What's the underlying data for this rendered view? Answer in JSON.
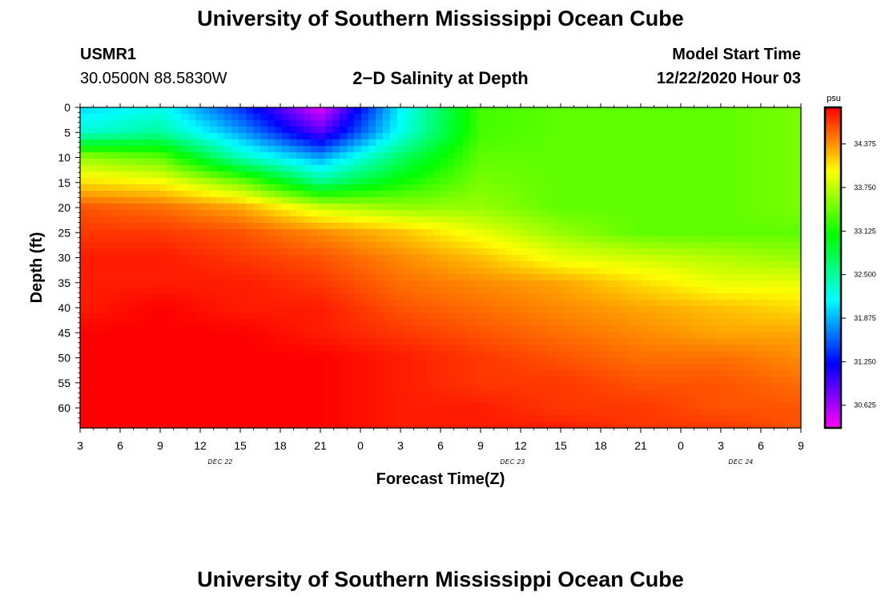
{
  "header": {
    "title": "University of Southern Mississippi Ocean Cube",
    "station_id": "USMR1",
    "coords": "30.0500N 88.5830W",
    "subtitle": "2−D Salinity at Depth",
    "start_label": "Model Start Time",
    "start_value": "12/22/2020 Hour 03",
    "footer_title": "University of Southern Mississippi Ocean Cube"
  },
  "chart_data": {
    "type": "heatmap",
    "title": "2−D Salinity at Depth",
    "xlabel": "Forecast Time(Z)",
    "ylabel": "Depth (ft)",
    "ylim": [
      0,
      64
    ],
    "y_ticks": [
      "0",
      "5",
      "10",
      "15",
      "20",
      "25",
      "30",
      "35",
      "40",
      "45",
      "50",
      "55",
      "60"
    ],
    "x_ticks": [
      "3",
      "6",
      "9",
      "12",
      "15",
      "18",
      "21",
      "0",
      "3",
      "6",
      "9",
      "12",
      "15",
      "18",
      "21",
      "0",
      "3",
      "6",
      "9"
    ],
    "date_labels": [
      {
        "text": "DEC 22",
        "under_tick": 3.5
      },
      {
        "text": "DEC 23",
        "under_tick": 10.8
      },
      {
        "text": "DEC 24",
        "under_tick": 16.5
      }
    ],
    "colorbar": {
      "unit": "psu",
      "range": [
        30.3,
        34.9
      ],
      "ticks": [
        "34.375",
        "33.750",
        "33.125",
        "32.500",
        "31.875",
        "31.250",
        "30.625"
      ],
      "tick_values": [
        34.375,
        33.75,
        33.125,
        32.5,
        31.875,
        31.25,
        30.625
      ]
    },
    "depths_ft": [
      0,
      5,
      10,
      15,
      20,
      25,
      30,
      35,
      40,
      45,
      50,
      55,
      60,
      64
    ],
    "times_hours_from_start": [
      0,
      6,
      12,
      18,
      24,
      30,
      36,
      42,
      48,
      54
    ],
    "salinity_psu": [
      [
        32.0,
        32.2,
        31.4,
        30.4,
        32.1,
        33.3,
        33.4,
        33.4,
        33.4,
        33.5
      ],
      [
        32.3,
        32.5,
        31.8,
        30.9,
        32.2,
        33.3,
        33.4,
        33.4,
        33.4,
        33.5
      ],
      [
        33.6,
        33.4,
        32.4,
        31.8,
        32.7,
        33.4,
        33.4,
        33.4,
        33.4,
        33.5
      ],
      [
        34.1,
        34.0,
        33.5,
        32.6,
        33.1,
        33.5,
        33.4,
        33.4,
        33.4,
        33.5
      ],
      [
        34.6,
        34.5,
        34.3,
        33.8,
        33.6,
        33.6,
        33.4,
        33.4,
        33.4,
        33.5
      ],
      [
        34.7,
        34.7,
        34.6,
        34.4,
        34.2,
        33.9,
        33.6,
        33.4,
        33.4,
        33.4
      ],
      [
        34.8,
        34.8,
        34.7,
        34.6,
        34.4,
        34.2,
        33.9,
        33.8,
        33.7,
        33.6
      ],
      [
        34.8,
        34.8,
        34.8,
        34.7,
        34.5,
        34.4,
        34.3,
        34.1,
        33.9,
        33.9
      ],
      [
        34.8,
        34.9,
        34.8,
        34.8,
        34.6,
        34.5,
        34.4,
        34.3,
        34.2,
        34.1
      ],
      [
        34.9,
        34.9,
        34.9,
        34.8,
        34.7,
        34.6,
        34.5,
        34.4,
        34.3,
        34.3
      ],
      [
        34.9,
        34.9,
        34.9,
        34.9,
        34.8,
        34.7,
        34.6,
        34.5,
        34.5,
        34.4
      ],
      [
        34.9,
        34.9,
        34.9,
        34.9,
        34.8,
        34.7,
        34.7,
        34.6,
        34.6,
        34.5
      ],
      [
        34.9,
        34.9,
        34.9,
        34.9,
        34.8,
        34.8,
        34.7,
        34.7,
        34.6,
        34.6
      ],
      [
        34.9,
        34.9,
        34.9,
        34.9,
        34.8,
        34.8,
        34.8,
        34.7,
        34.7,
        34.6
      ]
    ]
  },
  "colors": {
    "ramp": [
      "#ff00ff",
      "#0000ff",
      "#00ffff",
      "#00ff00",
      "#ffff00",
      "#ff0000"
    ]
  }
}
